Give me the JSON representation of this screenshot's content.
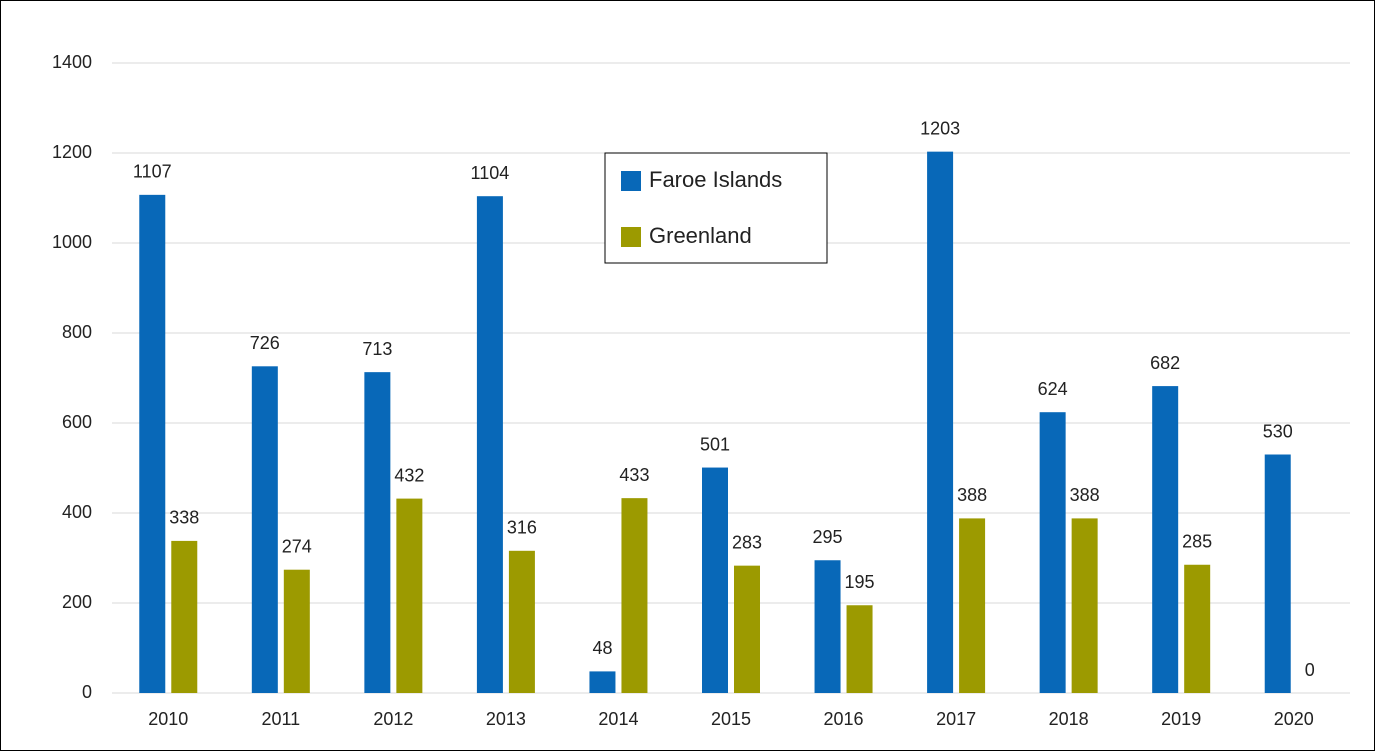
{
  "chart_data": {
    "type": "bar",
    "categories": [
      "2010",
      "2011",
      "2012",
      "2013",
      "2014",
      "2015",
      "2016",
      "2017",
      "2018",
      "2019",
      "2020"
    ],
    "series": [
      {
        "name": "Faroe Islands",
        "color": "#0868b8",
        "values": [
          1107,
          726,
          713,
          1104,
          48,
          501,
          295,
          1203,
          624,
          682,
          530
        ]
      },
      {
        "name": "Greenland",
        "color": "#9c9a00",
        "values": [
          338,
          274,
          432,
          316,
          433,
          283,
          195,
          388,
          388,
          285,
          0
        ]
      }
    ],
    "ylim": [
      0,
      1400
    ],
    "yticks": [
      0,
      200,
      400,
      600,
      800,
      1000,
      1200,
      1400
    ],
    "grid": true,
    "legend": "top-center"
  }
}
